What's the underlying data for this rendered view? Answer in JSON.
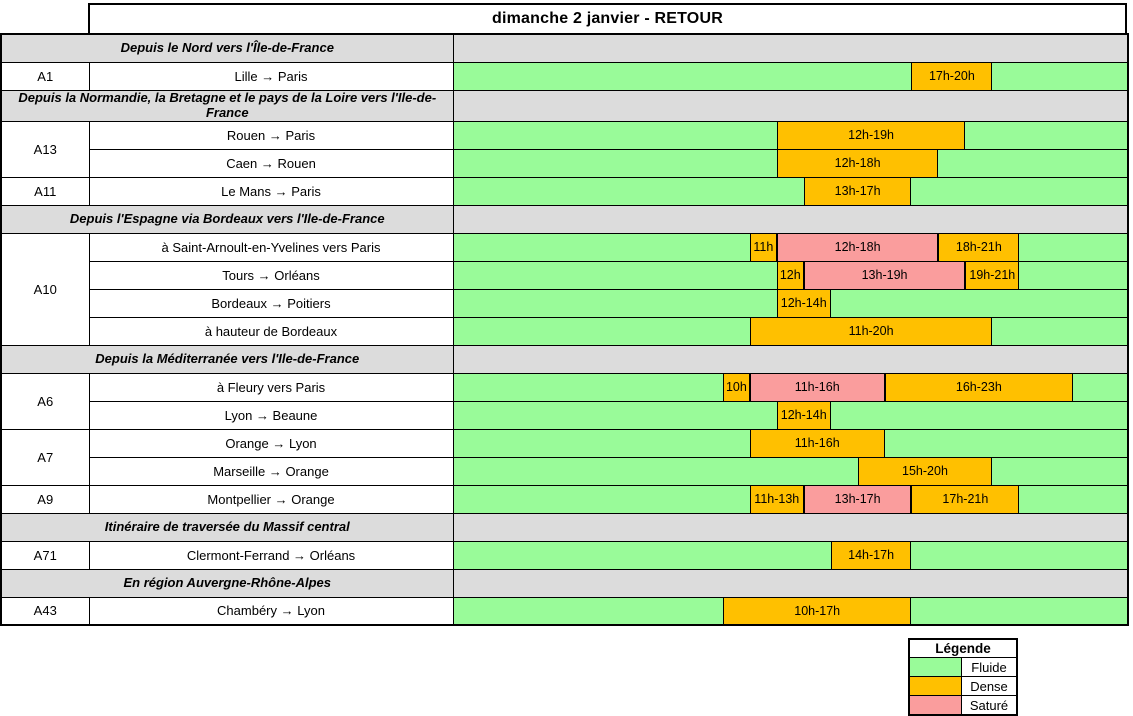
{
  "title": "dimanche 2 janvier - RETOUR",
  "colors": {
    "fluide": "#99FB99",
    "dense": "#FFC000",
    "sature": "#FA9D9D",
    "section_bg": "#DCDCDC",
    "border": "#000000"
  },
  "chart_data": {
    "type": "table",
    "subtype": "traffic-forecast-timeline",
    "x_axis": {
      "unit": "hour",
      "min": 0,
      "max": 25,
      "ticks_shown": false
    },
    "statuses": [
      {
        "id": "fluide",
        "label": "Fluide",
        "color": "#99FB99"
      },
      {
        "id": "dense",
        "label": "Dense",
        "color": "#FFC000"
      },
      {
        "id": "sature",
        "label": "Saturé",
        "color": "#FA9D9D"
      }
    ],
    "rows": [
      {
        "type": "section",
        "label": "Depuis le Nord vers l'Île-de-France"
      },
      {
        "type": "route",
        "code": "A1",
        "code_span": 1,
        "route": "Lille → Paris",
        "segments": [
          {
            "start": 17,
            "end": 20,
            "status": "dense",
            "label": "17h-20h"
          }
        ]
      },
      {
        "type": "section",
        "tall": true,
        "label": "Depuis la Normandie, la Bretagne et le pays de la Loire vers l'Ile-de-France"
      },
      {
        "type": "route",
        "code": "A13",
        "code_span": 2,
        "route": "Rouen → Paris",
        "segments": [
          {
            "start": 12,
            "end": 19,
            "status": "dense",
            "label": "12h-19h"
          }
        ]
      },
      {
        "type": "route",
        "code": null,
        "route": "Caen → Rouen",
        "segments": [
          {
            "start": 12,
            "end": 18,
            "status": "dense",
            "label": "12h-18h"
          }
        ]
      },
      {
        "type": "route",
        "code": "A11",
        "code_span": 1,
        "route": "Le Mans → Paris",
        "segments": [
          {
            "start": 13,
            "end": 17,
            "status": "dense",
            "label": "13h-17h"
          }
        ]
      },
      {
        "type": "section",
        "label": "Depuis l'Espagne via Bordeaux vers l'Ile-de-France"
      },
      {
        "type": "route",
        "code": "A10",
        "code_span": 4,
        "route": "à Saint-Arnoult-en-Yvelines vers Paris",
        "segments": [
          {
            "start": 11,
            "end": 12,
            "status": "dense",
            "label": "11h"
          },
          {
            "start": 12,
            "end": 18,
            "status": "sature",
            "label": "12h-18h"
          },
          {
            "start": 18,
            "end": 21,
            "status": "dense",
            "label": "18h-21h"
          }
        ]
      },
      {
        "type": "route",
        "code": null,
        "route": "Tours → Orléans",
        "segments": [
          {
            "start": 12,
            "end": 13,
            "status": "dense",
            "label": "12h"
          },
          {
            "start": 13,
            "end": 19,
            "status": "sature",
            "label": "13h-19h"
          },
          {
            "start": 19,
            "end": 21,
            "status": "dense",
            "label": "19h-21h"
          }
        ]
      },
      {
        "type": "route",
        "code": null,
        "route": "Bordeaux → Poitiers",
        "segments": [
          {
            "start": 12,
            "end": 14,
            "status": "dense",
            "label": "12h-14h"
          }
        ]
      },
      {
        "type": "route",
        "code": null,
        "route": "à hauteur de Bordeaux",
        "segments": [
          {
            "start": 11,
            "end": 20,
            "status": "dense",
            "label": "11h-20h"
          }
        ]
      },
      {
        "type": "section",
        "label": "Depuis la Méditerranée vers l'Ile-de-France"
      },
      {
        "type": "route",
        "code": "A6",
        "code_span": 2,
        "route": "à Fleury vers Paris",
        "segments": [
          {
            "start": 10,
            "end": 11,
            "status": "dense",
            "label": "10h"
          },
          {
            "start": 11,
            "end": 16,
            "status": "sature",
            "label": "11h-16h"
          },
          {
            "start": 16,
            "end": 23,
            "status": "dense",
            "label": "16h-23h"
          }
        ]
      },
      {
        "type": "route",
        "code": null,
        "route": "Lyon → Beaune",
        "segments": [
          {
            "start": 12,
            "end": 14,
            "status": "dense",
            "label": "12h-14h"
          }
        ]
      },
      {
        "type": "route",
        "code": "A7",
        "code_span": 2,
        "route": "Orange → Lyon",
        "segments": [
          {
            "start": 11,
            "end": 16,
            "status": "dense",
            "label": "11h-16h"
          }
        ]
      },
      {
        "type": "route",
        "code": null,
        "route": "Marseille → Orange",
        "segments": [
          {
            "start": 15,
            "end": 20,
            "status": "dense",
            "label": "15h-20h"
          }
        ]
      },
      {
        "type": "route",
        "code": "A9",
        "code_span": 1,
        "route": "Montpellier → Orange",
        "segments": [
          {
            "start": 11,
            "end": 13,
            "status": "dense",
            "label": "11h-13h"
          },
          {
            "start": 13,
            "end": 17,
            "status": "sature",
            "label": "13h-17h"
          },
          {
            "start": 17,
            "end": 21,
            "status": "dense",
            "label": "17h-21h"
          }
        ]
      },
      {
        "type": "section",
        "label": "Itinéraire de traversée du Massif central"
      },
      {
        "type": "route",
        "code": "A71",
        "code_span": 1,
        "route": "Clermont-Ferrand → Orléans",
        "segments": [
          {
            "start": 14,
            "end": 17,
            "status": "dense",
            "label": "14h-17h"
          }
        ]
      },
      {
        "type": "section",
        "label": "En région Auvergne-Rhône-Alpes"
      },
      {
        "type": "route",
        "code": "A43",
        "code_span": 1,
        "route": "Chambéry → Lyon",
        "segments": [
          {
            "start": 10,
            "end": 17,
            "status": "dense",
            "label": "10h-17h"
          }
        ]
      }
    ]
  },
  "legend": {
    "title": "Légende",
    "items": [
      {
        "label": "Fluide",
        "status": "fluide"
      },
      {
        "label": "Dense",
        "status": "dense"
      },
      {
        "label": "Saturé",
        "status": "sature"
      }
    ]
  }
}
